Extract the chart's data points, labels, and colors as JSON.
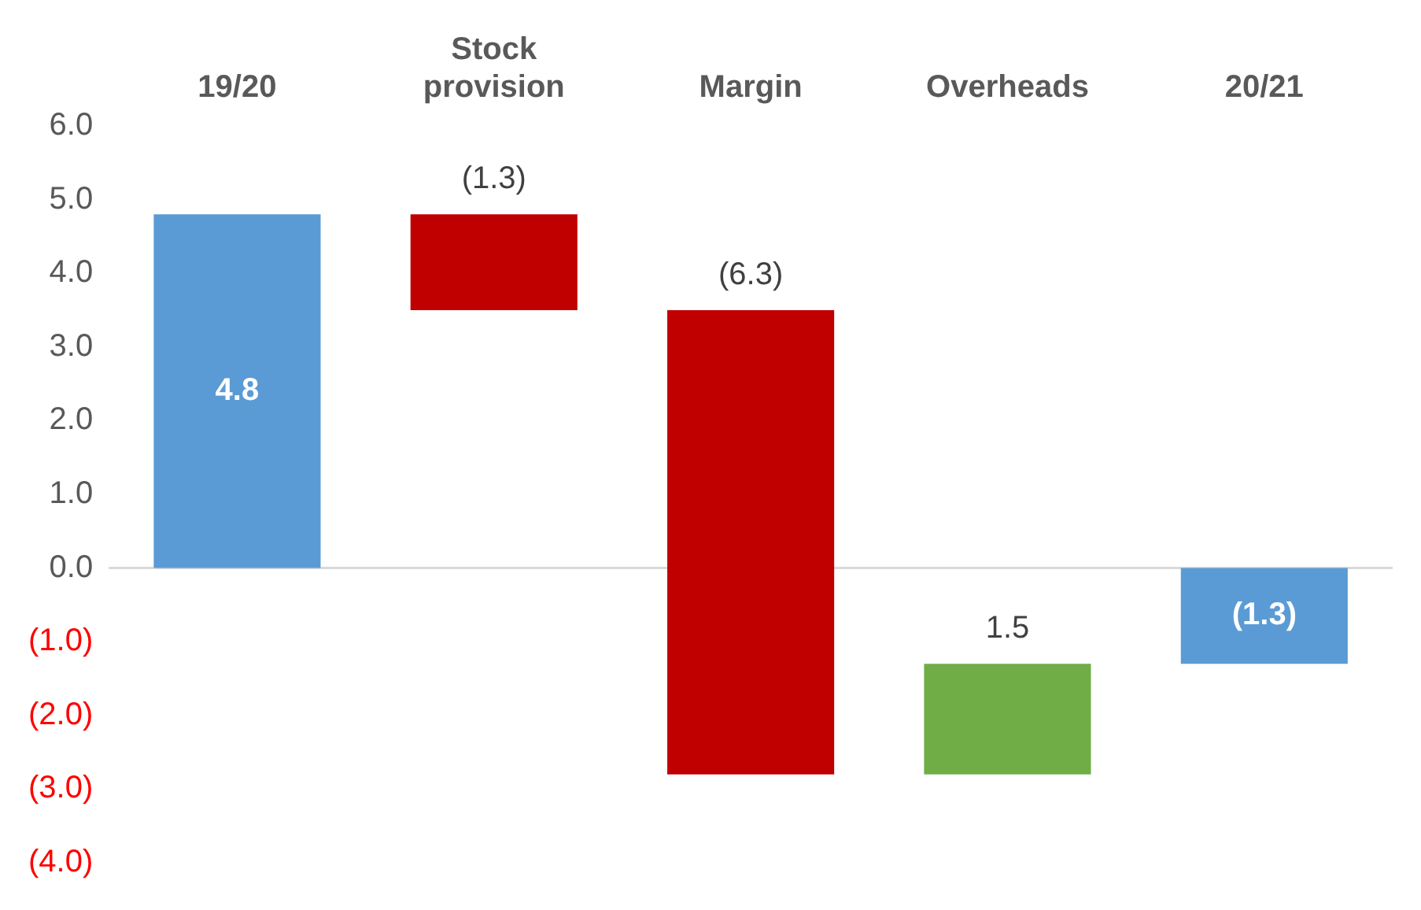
{
  "chart_data": {
    "type": "bar",
    "categories": [
      "19/20",
      "Stock provision",
      "Margin",
      "Overheads",
      "20/21"
    ],
    "values": [
      4.8,
      -1.3,
      -6.3,
      1.5,
      -1.3
    ],
    "base": [
      0,
      4.8,
      3.5,
      -2.8,
      0
    ],
    "colors": [
      "#5b9bd5",
      "#c00000",
      "#c00000",
      "#70ad47",
      "#5b9bd5"
    ],
    "value_labels": [
      "4.8",
      "(1.3)",
      "(6.3)",
      "1.5",
      "(1.3)"
    ],
    "ylim": [
      -4,
      6
    ],
    "yticks": [
      {
        "value": 6,
        "label": "6.0"
      },
      {
        "value": 5,
        "label": "5.0"
      },
      {
        "value": 4,
        "label": "4.0"
      },
      {
        "value": 3,
        "label": "3.0"
      },
      {
        "value": 2,
        "label": "2.0"
      },
      {
        "value": 1,
        "label": "1.0"
      },
      {
        "value": 0,
        "label": "0.0"
      },
      {
        "value": -1,
        "label": "(1.0)"
      },
      {
        "value": -2,
        "label": "(2.0)"
      },
      {
        "value": -3,
        "label": "(3.0)"
      },
      {
        "value": -4,
        "label": "(4.0)"
      }
    ],
    "ref_lines": [
      {
        "axis": "y",
        "value": 0,
        "color": "#d9d9d9"
      }
    ],
    "grid": false,
    "legend": false
  }
}
